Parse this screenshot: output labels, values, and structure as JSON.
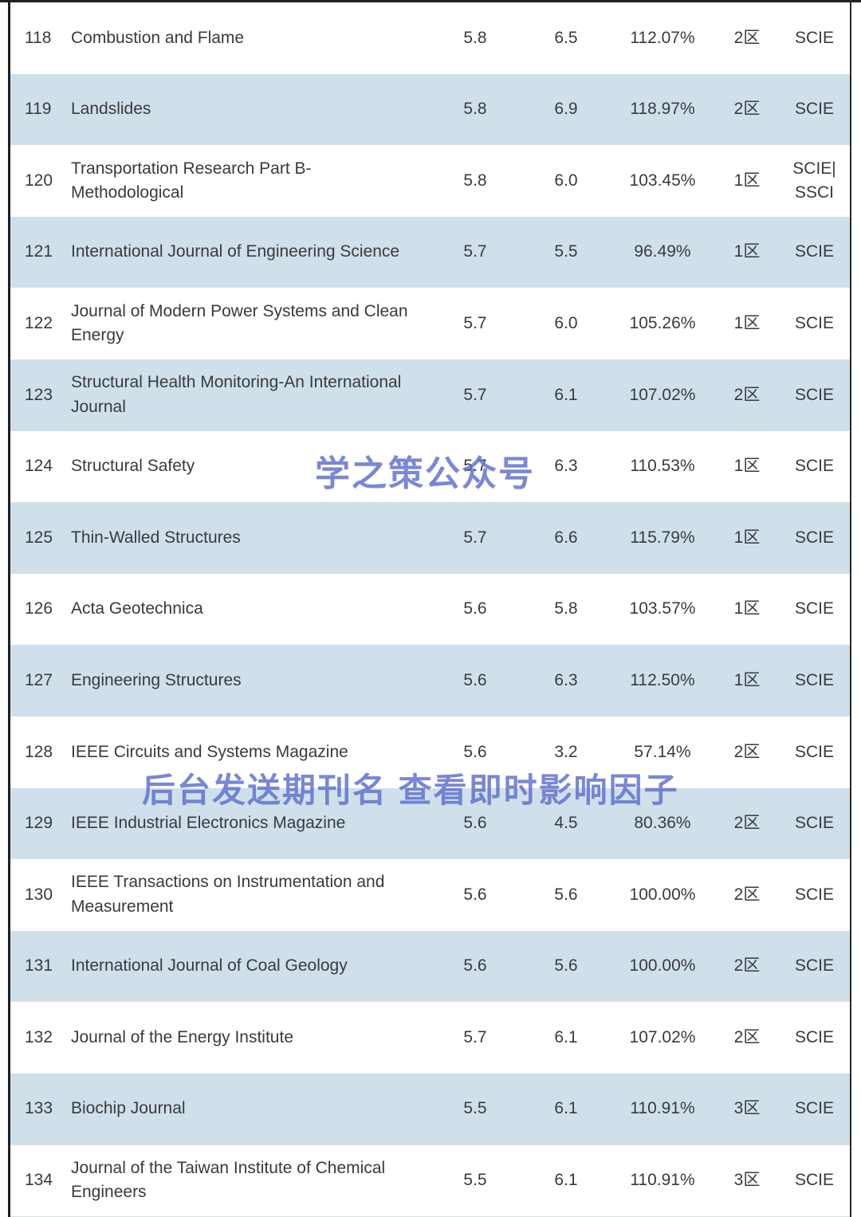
{
  "colors": {
    "row_shade": "#cfe0eb",
    "row_plain": "#ffffff",
    "text": "#3a3a3a",
    "watermark": "#6273cf",
    "border": "#1f1f1f"
  },
  "watermarks": {
    "brand": "学之策公众号",
    "promo": "后台发送期刊名 查看即时影响因子"
  },
  "table": {
    "rows": [
      {
        "rank": "118",
        "name": "Combustion and Flame",
        "if1": "5.8",
        "if2": "6.5",
        "ratio": "112.07%",
        "zone": "2区",
        "index": "SCIE"
      },
      {
        "rank": "119",
        "name": "Landslides",
        "if1": "5.8",
        "if2": "6.9",
        "ratio": "118.97%",
        "zone": "2区",
        "index": "SCIE"
      },
      {
        "rank": "120",
        "name": "Transportation Research Part B-Methodological",
        "if1": "5.8",
        "if2": "6.0",
        "ratio": "103.45%",
        "zone": "1区",
        "index": "SCIE|\nSSCI"
      },
      {
        "rank": "121",
        "name": "International Journal of Engineering Science",
        "if1": "5.7",
        "if2": "5.5",
        "ratio": "96.49%",
        "zone": "1区",
        "index": "SCIE"
      },
      {
        "rank": "122",
        "name": "Journal of Modern Power Systems and Clean Energy",
        "if1": "5.7",
        "if2": "6.0",
        "ratio": "105.26%",
        "zone": "1区",
        "index": "SCIE"
      },
      {
        "rank": "123",
        "name": "Structural Health Monitoring-An International Journal",
        "if1": "5.7",
        "if2": "6.1",
        "ratio": "107.02%",
        "zone": "2区",
        "index": "SCIE"
      },
      {
        "rank": "124",
        "name": "Structural Safety",
        "if1": "5.7",
        "if2": "6.3",
        "ratio": "110.53%",
        "zone": "1区",
        "index": "SCIE"
      },
      {
        "rank": "125",
        "name": "Thin-Walled Structures",
        "if1": "5.7",
        "if2": "6.6",
        "ratio": "115.79%",
        "zone": "1区",
        "index": "SCIE"
      },
      {
        "rank": "126",
        "name": "Acta Geotechnica",
        "if1": "5.6",
        "if2": "5.8",
        "ratio": "103.57%",
        "zone": "1区",
        "index": "SCIE"
      },
      {
        "rank": "127",
        "name": "Engineering Structures",
        "if1": "5.6",
        "if2": "6.3",
        "ratio": "112.50%",
        "zone": "1区",
        "index": "SCIE"
      },
      {
        "rank": "128",
        "name": "IEEE Circuits and Systems Magazine",
        "if1": "5.6",
        "if2": "3.2",
        "ratio": "57.14%",
        "zone": "2区",
        "index": "SCIE"
      },
      {
        "rank": "129",
        "name": "IEEE Industrial Electronics Magazine",
        "if1": "5.6",
        "if2": "4.5",
        "ratio": "80.36%",
        "zone": "2区",
        "index": "SCIE"
      },
      {
        "rank": "130",
        "name": "IEEE Transactions on Instrumentation and Measurement",
        "if1": "5.6",
        "if2": "5.6",
        "ratio": "100.00%",
        "zone": "2区",
        "index": "SCIE"
      },
      {
        "rank": "131",
        "name": "International Journal of Coal Geology",
        "if1": "5.6",
        "if2": "5.6",
        "ratio": "100.00%",
        "zone": "2区",
        "index": "SCIE"
      },
      {
        "rank": "132",
        "name": "Journal of the Energy Institute",
        "if1": "5.7",
        "if2": "6.1",
        "ratio": "107.02%",
        "zone": "2区",
        "index": "SCIE"
      },
      {
        "rank": "133",
        "name": "Biochip Journal",
        "if1": "5.5",
        "if2": "6.1",
        "ratio": "110.91%",
        "zone": "3区",
        "index": "SCIE"
      },
      {
        "rank": "134",
        "name": "Journal of the Taiwan Institute of Chemical Engineers",
        "if1": "5.5",
        "if2": "6.1",
        "ratio": "110.91%",
        "zone": "3区",
        "index": "SCIE"
      }
    ]
  }
}
